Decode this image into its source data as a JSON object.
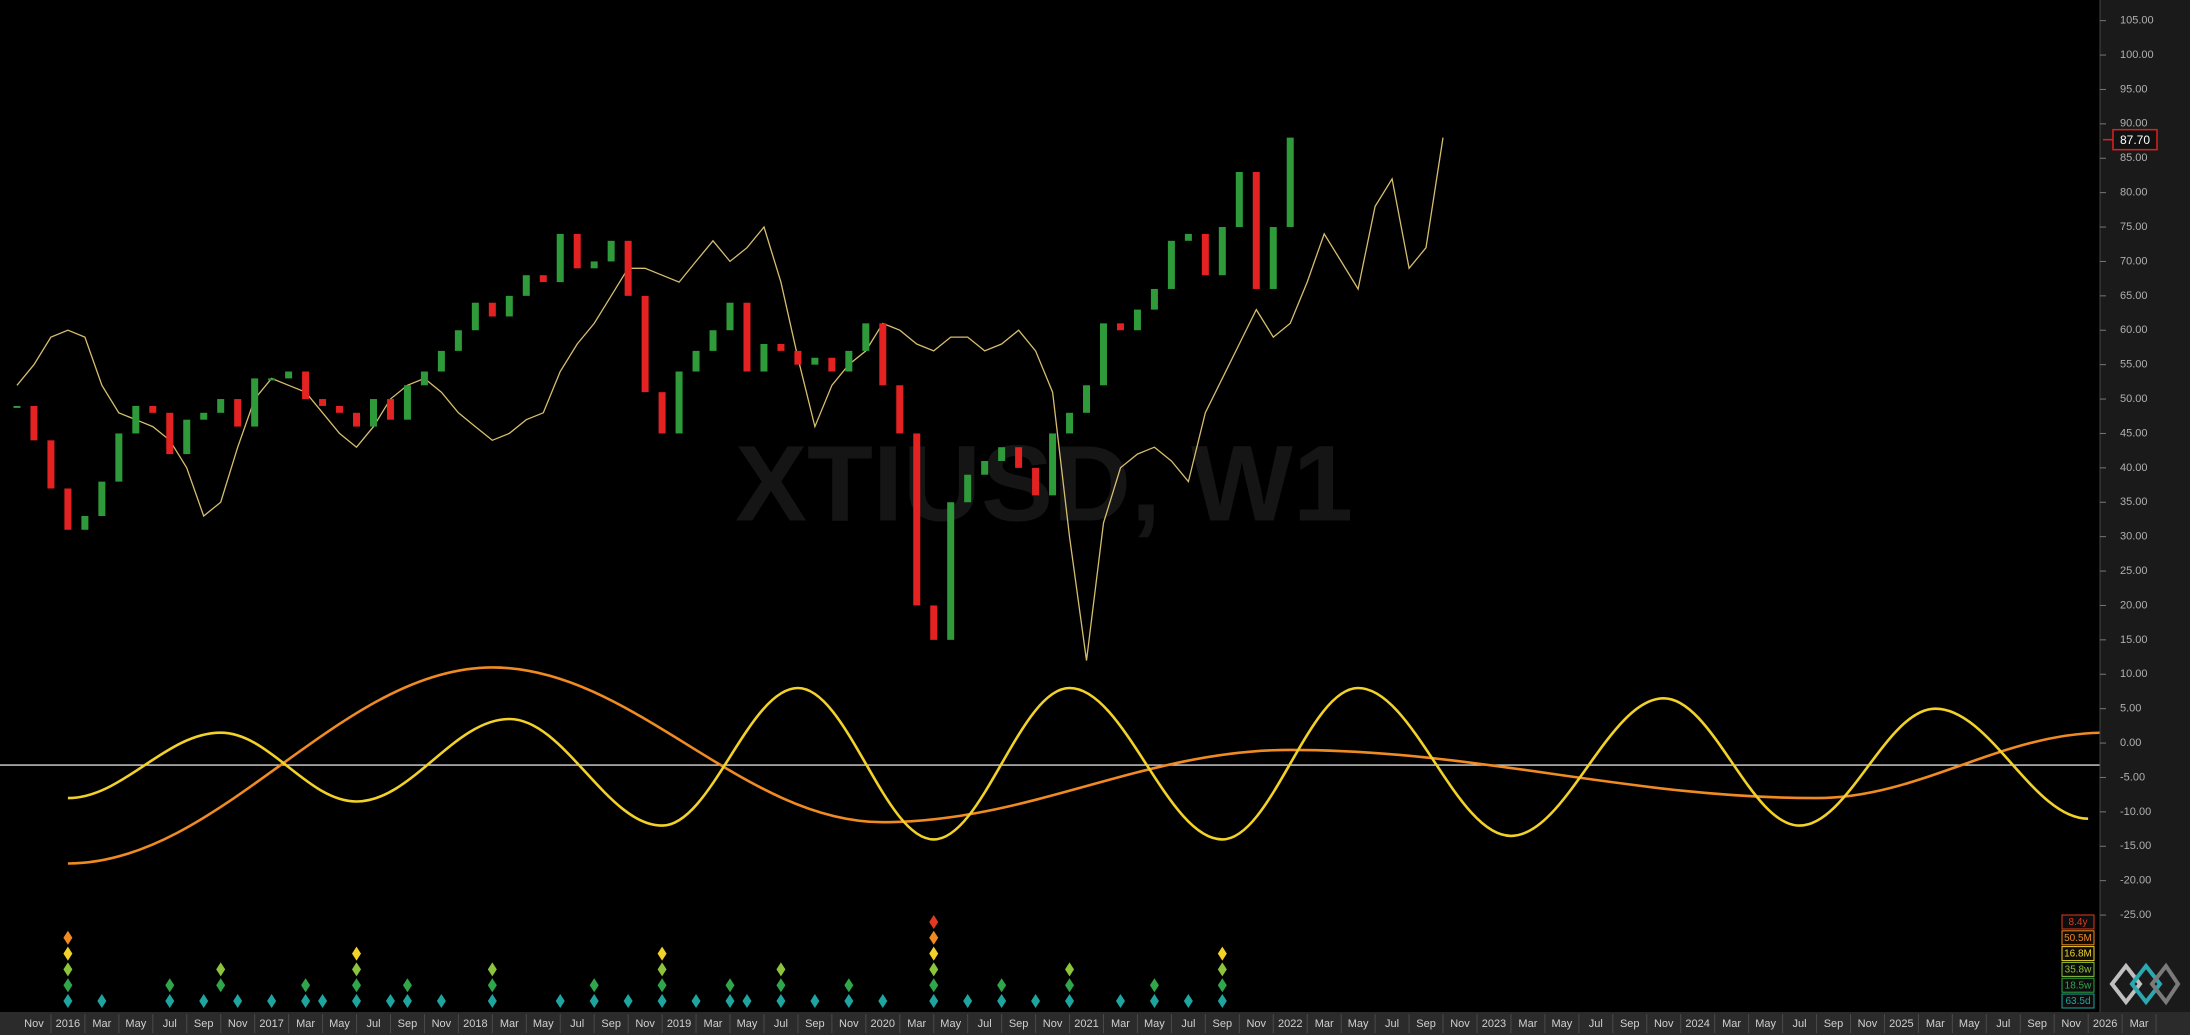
{
  "chart_data": {
    "type": "price-cycles",
    "watermark": "XTIUSD, W1",
    "xlim": [
      "2015-09",
      "2026-06"
    ],
    "xticks": [
      {
        "value": "2015-11",
        "label": "Nov"
      },
      {
        "value": "2016-01",
        "label": "2016"
      },
      {
        "value": "2016-03",
        "label": "Mar"
      },
      {
        "value": "2016-05",
        "label": "May"
      },
      {
        "value": "2016-07",
        "label": "Jul"
      },
      {
        "value": "2016-09",
        "label": "Sep"
      },
      {
        "value": "2016-11",
        "label": "Nov"
      },
      {
        "value": "2017-01",
        "label": "2017"
      },
      {
        "value": "2017-03",
        "label": "Mar"
      },
      {
        "value": "2017-05",
        "label": "May"
      },
      {
        "value": "2017-07",
        "label": "Jul"
      },
      {
        "value": "2017-09",
        "label": "Sep"
      },
      {
        "value": "2017-11",
        "label": "Nov"
      },
      {
        "value": "2018-01",
        "label": "2018"
      },
      {
        "value": "2018-03",
        "label": "Mar"
      },
      {
        "value": "2018-05",
        "label": "May"
      },
      {
        "value": "2018-07",
        "label": "Jul"
      },
      {
        "value": "2018-09",
        "label": "Sep"
      },
      {
        "value": "2018-11",
        "label": "Nov"
      },
      {
        "value": "2019-01",
        "label": "2019"
      },
      {
        "value": "2019-03",
        "label": "Mar"
      },
      {
        "value": "2019-05",
        "label": "May"
      },
      {
        "value": "2019-07",
        "label": "Jul"
      },
      {
        "value": "2019-09",
        "label": "Sep"
      },
      {
        "value": "2019-11",
        "label": "Nov"
      },
      {
        "value": "2020-01",
        "label": "2020"
      },
      {
        "value": "2020-03",
        "label": "Mar"
      },
      {
        "value": "2020-05",
        "label": "May"
      },
      {
        "value": "2020-07",
        "label": "Jul"
      },
      {
        "value": "2020-09",
        "label": "Sep"
      },
      {
        "value": "2020-11",
        "label": "Nov"
      },
      {
        "value": "2021-01",
        "label": "2021"
      },
      {
        "value": "2021-03",
        "label": "Mar"
      },
      {
        "value": "2021-05",
        "label": "May"
      },
      {
        "value": "2021-07",
        "label": "Jul"
      },
      {
        "value": "2021-09",
        "label": "Sep"
      },
      {
        "value": "2021-11",
        "label": "Nov"
      },
      {
        "value": "2022-01",
        "label": "2022"
      },
      {
        "value": "2022-03",
        "label": "Mar"
      },
      {
        "value": "2022-05",
        "label": "May"
      },
      {
        "value": "2022-07",
        "label": "Jul"
      },
      {
        "value": "2022-09",
        "label": "Sep"
      },
      {
        "value": "2022-11",
        "label": "Nov"
      },
      {
        "value": "2023-01",
        "label": "2023"
      },
      {
        "value": "2023-03",
        "label": "Mar"
      },
      {
        "value": "2023-05",
        "label": "May"
      },
      {
        "value": "2023-07",
        "label": "Jul"
      },
      {
        "value": "2023-09",
        "label": "Sep"
      },
      {
        "value": "2023-11",
        "label": "Nov"
      },
      {
        "value": "2024-01",
        "label": "2024"
      },
      {
        "value": "2024-03",
        "label": "Mar"
      },
      {
        "value": "2024-05",
        "label": "May"
      },
      {
        "value": "2024-07",
        "label": "Jul"
      },
      {
        "value": "2024-09",
        "label": "Sep"
      },
      {
        "value": "2024-11",
        "label": "Nov"
      },
      {
        "value": "2025-01",
        "label": "2025"
      },
      {
        "value": "2025-03",
        "label": "Mar"
      },
      {
        "value": "2025-05",
        "label": "May"
      },
      {
        "value": "2025-07",
        "label": "Jul"
      },
      {
        "value": "2025-09",
        "label": "Sep"
      },
      {
        "value": "2025-11",
        "label": "Nov"
      },
      {
        "value": "2026-01",
        "label": "2026"
      },
      {
        "value": "2026-03",
        "label": "Mar"
      }
    ],
    "ylim": [
      -38.8,
      108
    ],
    "yticks": [
      {
        "value": 105,
        "label": "105.00"
      },
      {
        "value": 100,
        "label": "100.00"
      },
      {
        "value": 95,
        "label": "95.00"
      },
      {
        "value": 90,
        "label": "90.00"
      },
      {
        "value": 85,
        "label": "85.00"
      },
      {
        "value": 80,
        "label": "80.00"
      },
      {
        "value": 75,
        "label": "75.00"
      },
      {
        "value": 70,
        "label": "70.00"
      },
      {
        "value": 65,
        "label": "65.00"
      },
      {
        "value": 60,
        "label": "60.00"
      },
      {
        "value": 55,
        "label": "55.00"
      },
      {
        "value": 50,
        "label": "50.00"
      },
      {
        "value": 45,
        "label": "45.00"
      },
      {
        "value": 40,
        "label": "40.00"
      },
      {
        "value": 35,
        "label": "35.00"
      },
      {
        "value": 30,
        "label": "30.00"
      },
      {
        "value": 25,
        "label": "25.00"
      },
      {
        "value": 20,
        "label": "20.00"
      },
      {
        "value": 15,
        "label": "15.00"
      },
      {
        "value": 10,
        "label": "10.00"
      },
      {
        "value": 5,
        "label": "5.00"
      },
      {
        "value": 0,
        "label": "0.00"
      },
      {
        "value": -5,
        "label": "-5.00"
      },
      {
        "value": -10,
        "label": "-10.00"
      },
      {
        "value": -15,
        "label": "-15.00"
      },
      {
        "value": -20,
        "label": "-20.00"
      },
      {
        "value": -25,
        "label": "-25.00"
      }
    ],
    "price": {
      "up_color": "#2f9a3a",
      "down_color": "#e42222",
      "x": [
        "2015-10",
        "2015-11",
        "2015-12",
        "2016-01",
        "2016-02",
        "2016-03",
        "2016-04",
        "2016-05",
        "2016-06",
        "2016-07",
        "2016-08",
        "2016-09",
        "2016-10",
        "2016-11",
        "2016-12",
        "2017-01",
        "2017-02",
        "2017-03",
        "2017-04",
        "2017-05",
        "2017-06",
        "2017-07",
        "2017-08",
        "2017-09",
        "2017-10",
        "2017-11",
        "2017-12",
        "2018-01",
        "2018-02",
        "2018-03",
        "2018-04",
        "2018-05",
        "2018-06",
        "2018-07",
        "2018-08",
        "2018-09",
        "2018-10",
        "2018-11",
        "2018-12",
        "2019-01",
        "2019-02",
        "2019-03",
        "2019-04",
        "2019-05",
        "2019-06",
        "2019-07",
        "2019-08",
        "2019-09",
        "2019-10",
        "2019-11",
        "2019-12",
        "2020-01",
        "2020-02",
        "2020-03",
        "2020-04",
        "2020-05",
        "2020-06",
        "2020-07",
        "2020-08",
        "2020-09",
        "2020-10",
        "2020-11",
        "2020-12",
        "2021-01",
        "2021-02",
        "2021-03",
        "2021-04",
        "2021-05",
        "2021-06",
        "2021-07",
        "2021-08",
        "2021-09",
        "2021-10",
        "2021-11",
        "2021-12",
        "2022-01"
      ],
      "values": [
        49,
        44,
        37,
        31,
        33,
        38,
        45,
        49,
        48,
        42,
        47,
        48,
        50,
        46,
        53,
        53,
        54,
        50,
        49,
        48,
        46,
        50,
        47,
        52,
        54,
        57,
        60,
        64,
        62,
        65,
        68,
        67,
        74,
        69,
        70,
        73,
        65,
        51,
        45,
        54,
        57,
        60,
        64,
        54,
        58,
        57,
        55,
        56,
        54,
        57,
        61,
        52,
        45,
        20,
        15,
        35,
        39,
        41,
        43,
        40,
        36,
        45,
        48,
        52,
        61,
        60,
        63,
        66,
        73,
        74,
        68,
        75,
        83,
        66,
        75,
        88
      ]
    },
    "last_price": {
      "value": 87.7,
      "label": "87.70",
      "color": "#e02020"
    },
    "overlay_line": {
      "color": "#d6bd6e",
      "x": [
        "2015-10",
        "2015-11",
        "2015-12",
        "2016-01",
        "2016-02",
        "2016-03",
        "2016-04",
        "2016-05",
        "2016-06",
        "2016-07",
        "2016-08",
        "2016-09",
        "2016-10",
        "2016-11",
        "2016-12",
        "2017-01",
        "2017-02",
        "2017-03",
        "2017-04",
        "2017-05",
        "2017-06",
        "2017-07",
        "2017-08",
        "2017-09",
        "2017-10",
        "2017-11",
        "2017-12",
        "2018-01",
        "2018-02",
        "2018-03",
        "2018-04",
        "2018-05",
        "2018-06",
        "2018-07",
        "2018-08",
        "2018-09",
        "2018-10",
        "2018-11",
        "2018-12",
        "2019-01",
        "2019-02",
        "2019-03",
        "2019-04",
        "2019-05",
        "2019-06",
        "2019-07",
        "2019-08",
        "2019-09",
        "2019-10",
        "2019-11",
        "2019-12",
        "2020-01",
        "2020-02",
        "2020-03",
        "2020-04",
        "2020-05",
        "2020-06",
        "2020-07",
        "2020-08",
        "2020-09",
        "2020-10",
        "2020-11",
        "2020-12",
        "2021-01",
        "2021-02",
        "2021-03",
        "2021-04",
        "2021-05",
        "2021-06",
        "2021-07",
        "2021-08",
        "2021-09",
        "2021-10",
        "2021-11",
        "2021-12",
        "2022-01",
        "2022-02",
        "2022-03",
        "2022-04",
        "2022-05",
        "2022-06",
        "2022-07",
        "2022-08",
        "2022-09",
        "2022-10"
      ],
      "values": [
        52,
        55,
        59,
        60,
        59,
        52,
        48,
        47,
        46,
        44,
        40,
        33,
        35,
        43,
        50,
        53,
        52,
        51,
        48,
        45,
        43,
        46,
        50,
        52,
        53,
        51,
        48,
        46,
        44,
        45,
        47,
        48,
        54,
        58,
        61,
        65,
        69,
        69,
        68,
        67,
        70,
        73,
        70,
        72,
        75,
        67,
        56,
        46,
        52,
        55,
        57,
        61,
        60,
        58,
        57,
        59,
        59,
        57,
        58,
        60,
        57,
        51,
        30,
        12,
        32,
        40,
        42,
        43,
        41,
        38,
        48,
        53,
        58,
        63,
        59,
        61,
        67,
        74,
        70,
        66,
        78,
        82,
        69,
        72,
        88
      ]
    },
    "reference_line": {
      "value": -3.2,
      "color": "#d8d8d8"
    },
    "cycles": [
      {
        "name": "8.4y",
        "color": "#e03a22",
        "lows": [
          "2020-04"
        ]
      },
      {
        "name": "50.5M",
        "color": "#f08a22",
        "lows": [
          "2016-01",
          "2020-04"
        ],
        "wave": {
          "x": [
            "2016-01",
            "2018-02",
            "2020-01",
            "2022-01",
            "2024-08",
            "2026-01"
          ],
          "values": [
            -17.5,
            11,
            -11.5,
            -1,
            -8,
            1.5
          ]
        }
      },
      {
        "name": "16.8M",
        "color": "#f2d228",
        "lows": [
          "2016-01",
          "2017-06",
          "2018-12",
          "2020-04",
          "2021-09"
        ],
        "wave": {
          "x": [
            "2016-01",
            "2016-10",
            "2017-06",
            "2018-03",
            "2018-12",
            "2019-08",
            "2020-04",
            "2020-12",
            "2021-09",
            "2022-05",
            "2023-02",
            "2023-11",
            "2024-07",
            "2025-03",
            "2025-12"
          ],
          "values": [
            -8,
            1.5,
            -8.5,
            3.5,
            -12,
            8,
            -14,
            8,
            -14,
            8,
            -13.5,
            6.5,
            -12,
            5,
            -11
          ]
        }
      },
      {
        "name": "35.8w",
        "color": "#8cc43c",
        "lows": [
          "2016-01",
          "2016-10",
          "2017-06",
          "2018-02",
          "2018-12",
          "2019-07",
          "2020-04",
          "2020-12",
          "2021-09"
        ]
      },
      {
        "name": "18.5w",
        "color": "#2fa64a",
        "lows": [
          "2016-01",
          "2016-07",
          "2016-10",
          "2017-03",
          "2017-06",
          "2017-09",
          "2018-02",
          "2018-08",
          "2018-12",
          "2019-04",
          "2019-07",
          "2019-11",
          "2020-04",
          "2020-08",
          "2020-12",
          "2021-05",
          "2021-09"
        ]
      },
      {
        "name": "63.5d",
        "color": "#1fa5a0",
        "lows": [
          "2016-01",
          "2016-03",
          "2016-07",
          "2016-09",
          "2016-11",
          "2017-01",
          "2017-03",
          "2017-04",
          "2017-06",
          "2017-08",
          "2017-09",
          "2017-11",
          "2018-02",
          "2018-06",
          "2018-08",
          "2018-10",
          "2018-12",
          "2019-02",
          "2019-04",
          "2019-05",
          "2019-07",
          "2019-09",
          "2019-11",
          "2020-01",
          "2020-04",
          "2020-06",
          "2020-08",
          "2020-10",
          "2020-12",
          "2021-03",
          "2021-05",
          "2021-07",
          "2021-09"
        ]
      }
    ]
  }
}
